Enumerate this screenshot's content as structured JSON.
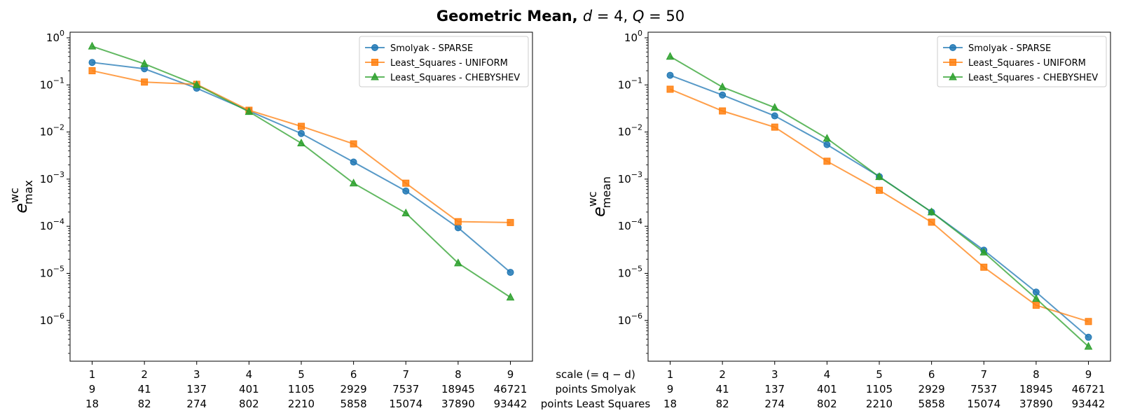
{
  "title": "Geometric Mean, d = 4, Q = 50",
  "title_parts": {
    "bold": "Geometric Mean, ",
    "d": "d",
    "d_eq": " = 4, ",
    "q": "Q",
    "q_eq": " = 50"
  },
  "colors": {
    "smolyak": "#1f77b4",
    "uniform": "#ff7f0e",
    "chebyshev": "#2ca02c"
  },
  "x_row_labels": [
    "scale (= q − d)",
    "points Smolyak",
    "points Least Squares"
  ],
  "chart_data": [
    {
      "type": "line",
      "y_scale": "log",
      "ylim": [
        1e-07,
        1
      ],
      "ylabel": {
        "base": "e",
        "sup": "wc",
        "sub": "max"
      },
      "x": [
        1,
        2,
        3,
        4,
        5,
        6,
        7,
        8,
        9
      ],
      "x_points_smolyak": [
        9,
        41,
        137,
        401,
        1105,
        2929,
        7537,
        18945,
        46721
      ],
      "x_points_least_squares": [
        18,
        82,
        274,
        802,
        2210,
        5858,
        15074,
        37890,
        93442
      ],
      "y_ticks": [
        "10^0",
        "10^-1",
        "10^-2",
        "10^-3",
        "10^-4",
        "10^-5",
        "10^-6"
      ],
      "legend_position": "top-right",
      "series": [
        {
          "name": "Smolyak - SPARSE",
          "marker": "circle",
          "values": [
            0.3,
            0.22,
            0.085,
            0.028,
            0.0093,
            0.0023,
            0.00056,
            9.3e-05,
            1.05e-05
          ]
        },
        {
          "name": "Least_Squares - UNIFORM",
          "marker": "square",
          "values": [
            0.2,
            0.115,
            0.103,
            0.029,
            0.0132,
            0.0056,
            0.00082,
            0.000125,
            0.00012
          ]
        },
        {
          "name": "Least_Squares - CHEBYSHEV",
          "marker": "triangle",
          "values": [
            0.66,
            0.28,
            0.1,
            0.027,
            0.0058,
            0.00082,
            0.00019,
            1.65e-05,
            3.1e-06
          ]
        }
      ]
    },
    {
      "type": "line",
      "y_scale": "log",
      "ylim": [
        1e-07,
        1
      ],
      "ylabel": {
        "base": "e",
        "sup": "wc",
        "sub": "mean"
      },
      "x": [
        1,
        2,
        3,
        4,
        5,
        6,
        7,
        8,
        9
      ],
      "x_points_smolyak": [
        9,
        41,
        137,
        401,
        1105,
        2929,
        7537,
        18945,
        46721
      ],
      "x_points_least_squares": [
        18,
        82,
        274,
        802,
        2210,
        5858,
        15074,
        37890,
        93442
      ],
      "y_ticks": [
        "10^0",
        "10^-1",
        "10^-2",
        "10^-3",
        "10^-4",
        "10^-5",
        "10^-6"
      ],
      "legend_position": "top-right",
      "series": [
        {
          "name": "Smolyak - SPARSE",
          "marker": "circle",
          "values": [
            0.16,
            0.061,
            0.022,
            0.0054,
            0.00113,
            0.0002,
            3.1e-05,
            4e-06,
            4.4e-07
          ]
        },
        {
          "name": "Least_Squares - UNIFORM",
          "marker": "square",
          "values": [
            0.081,
            0.028,
            0.0127,
            0.0024,
            0.00058,
            0.000122,
            1.35e-05,
            2.1e-06,
            9.5e-07
          ]
        },
        {
          "name": "Least_Squares - CHEBYSHEV",
          "marker": "triangle",
          "values": [
            0.4,
            0.09,
            0.033,
            0.0073,
            0.00112,
            0.0002,
            2.8e-05,
            2.9e-06,
            2.8e-07
          ]
        }
      ]
    }
  ]
}
